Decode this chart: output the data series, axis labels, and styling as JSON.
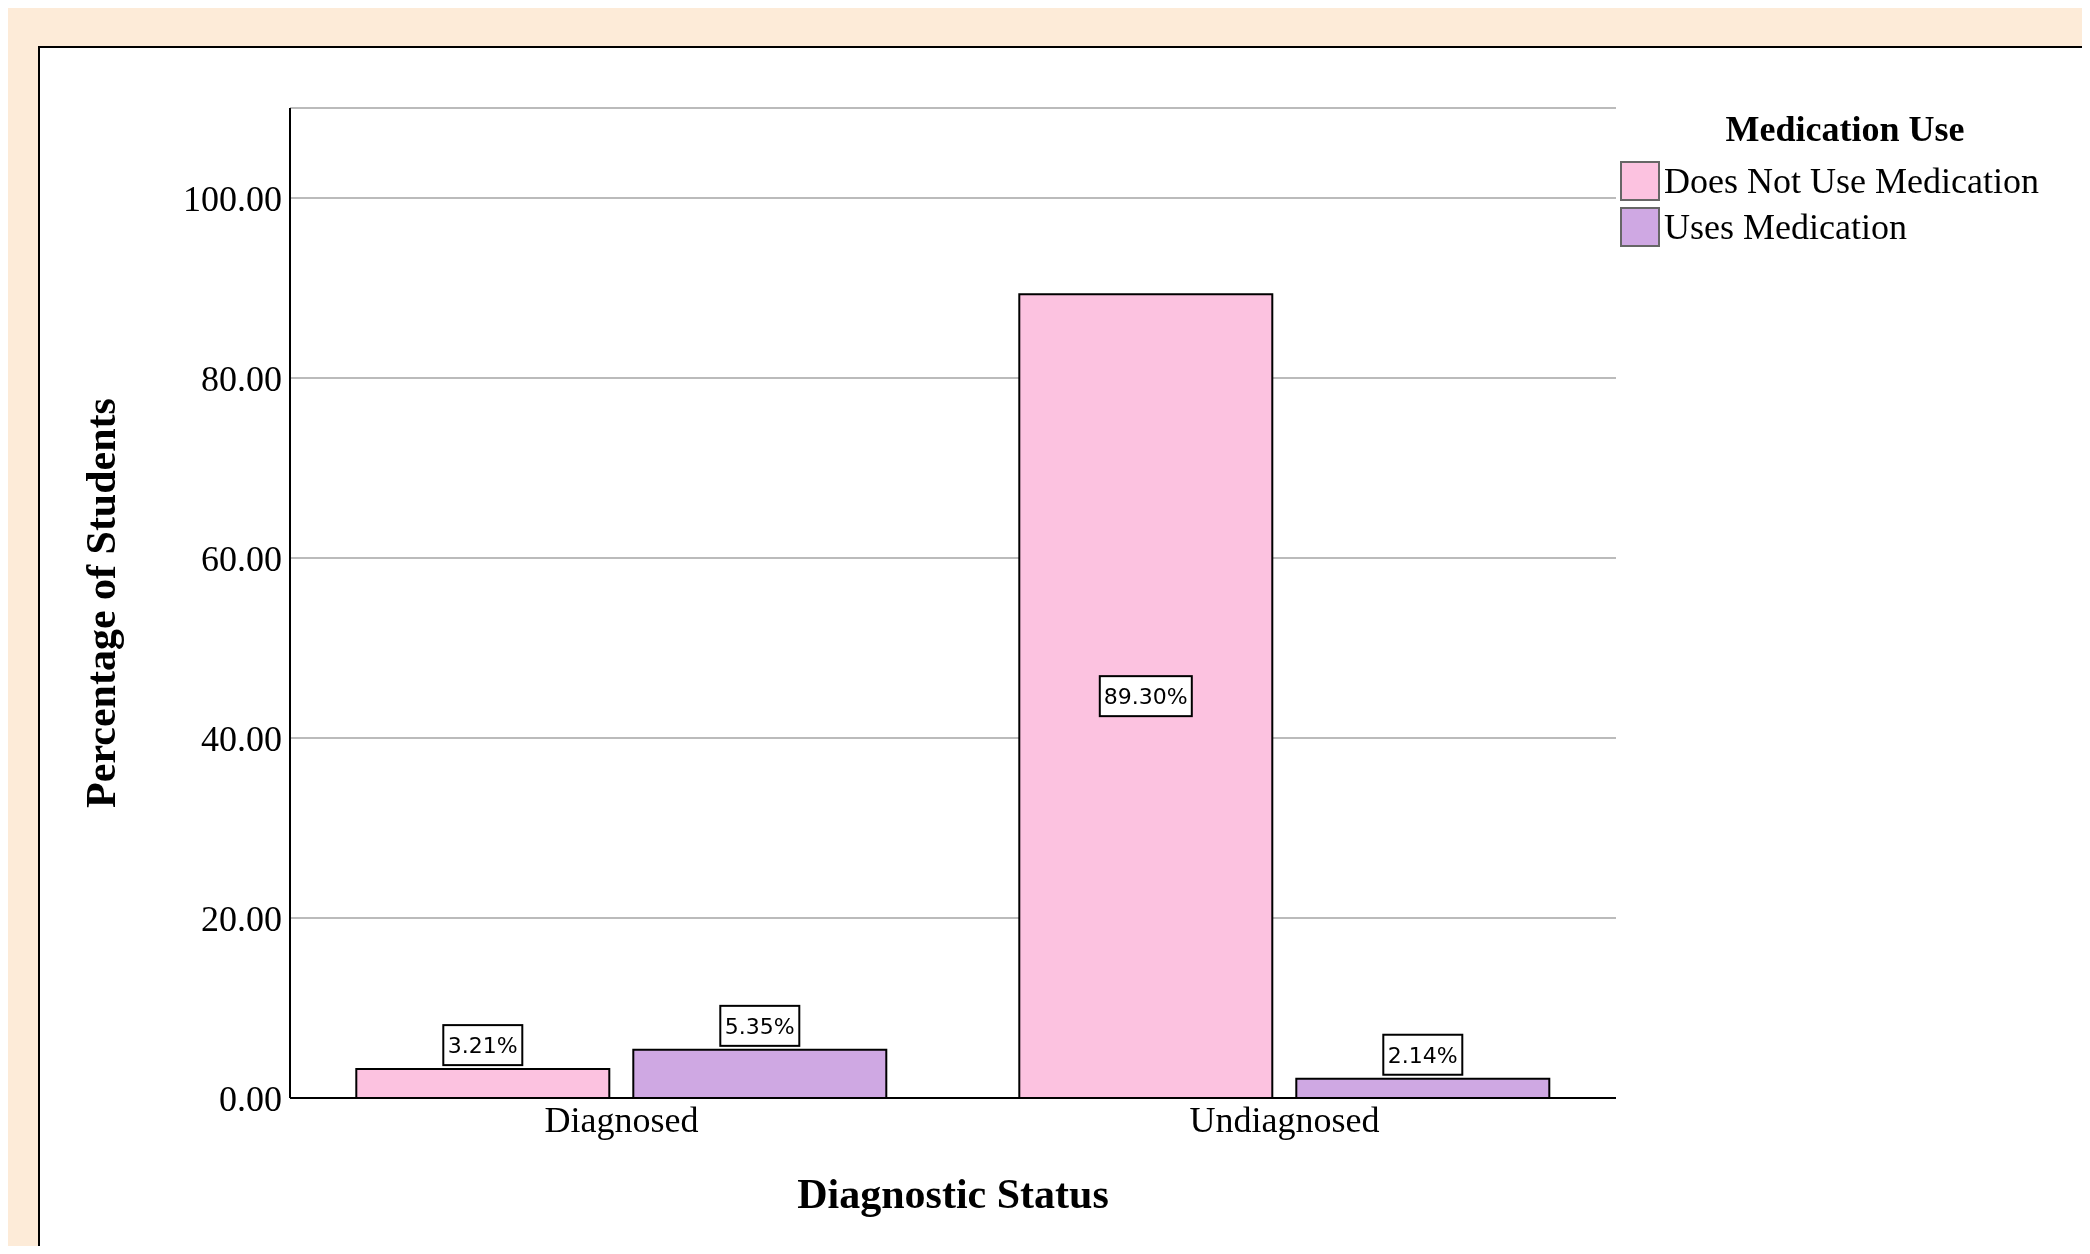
{
  "chart_data": {
    "type": "bar",
    "xlabel": "Diagnostic Status",
    "ylabel": "Percentage of Students",
    "legend_title": "Medication Use",
    "categories": [
      "Diagnosed",
      "Undiagnosed"
    ],
    "series": [
      {
        "name": "Does Not Use Medication",
        "color": "#fcc2e0",
        "values": [
          3.21,
          89.3
        ],
        "value_labels": [
          "3.21%",
          "89.30%"
        ]
      },
      {
        "name": "Uses Medication",
        "color": "#cfa8e3",
        "values": [
          5.35,
          2.14
        ],
        "value_labels": [
          "5.35%",
          "2.14%"
        ]
      }
    ],
    "ylim": [
      0,
      110
    ],
    "yticks": [
      {
        "value": 0,
        "label": "0.00"
      },
      {
        "value": 20,
        "label": "20.00"
      },
      {
        "value": 40,
        "label": "40.00"
      },
      {
        "value": 60,
        "label": "60.00"
      },
      {
        "value": 80,
        "label": "80.00"
      },
      {
        "value": 100,
        "label": "100.00"
      }
    ],
    "grid": "y",
    "legend": "top right"
  }
}
